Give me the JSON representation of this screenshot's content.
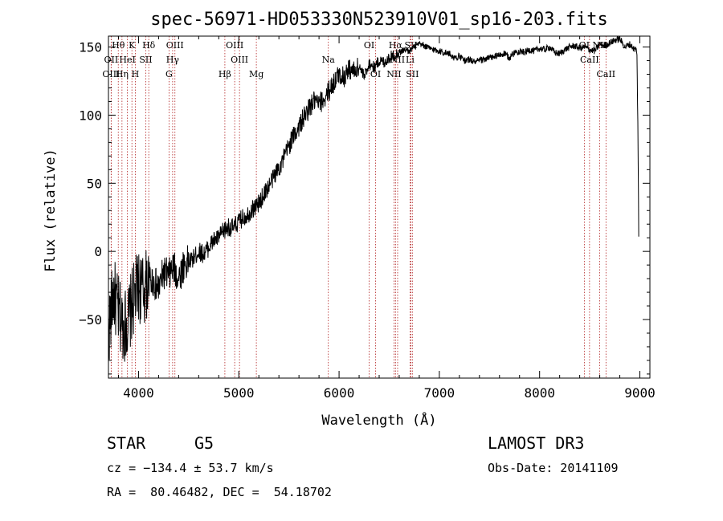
{
  "chart_data": {
    "type": "line",
    "title": "spec-56971-HD053330N523910V01_sp16-203.fits",
    "xlabel": "Wavelength (Å)",
    "ylabel": "Flux (relative)",
    "xlim": [
      3700,
      9100
    ],
    "ylim": [
      -93,
      158
    ],
    "xticks": [
      4000,
      5000,
      6000,
      7000,
      8000,
      9000
    ],
    "xtick_labels": [
      "4000",
      "5000",
      "6000",
      "7000",
      "8000",
      "9000"
    ],
    "yticks": [
      -50,
      0,
      50,
      100,
      150
    ],
    "ytick_labels": [
      "−50",
      "0",
      "50",
      "100",
      "150"
    ],
    "series": [
      {
        "name": "flux",
        "x": [
          3700,
          3750,
          3800,
          3850,
          3900,
          3950,
          4000,
          4050,
          4100,
          4150,
          4200,
          4250,
          4300,
          4350,
          4400,
          4450,
          4500,
          4550,
          4600,
          4650,
          4700,
          4750,
          4800,
          4850,
          4900,
          4950,
          5000,
          5050,
          5100,
          5150,
          5200,
          5250,
          5300,
          5350,
          5400,
          5450,
          5500,
          5550,
          5600,
          5650,
          5700,
          5750,
          5800,
          5850,
          5900,
          5950,
          6000,
          6050,
          6100,
          6150,
          6200,
          6250,
          6300,
          6350,
          6400,
          6450,
          6500,
          6550,
          6600,
          6650,
          6700,
          6750,
          6800,
          6850,
          6900,
          6950,
          7000,
          7050,
          7100,
          7150,
          7200,
          7250,
          7300,
          7350,
          7400,
          7450,
          7500,
          7550,
          7600,
          7650,
          7700,
          7750,
          7800,
          7850,
          7900,
          7950,
          8000,
          8050,
          8100,
          8150,
          8200,
          8250,
          8300,
          8350,
          8400,
          8450,
          8500,
          8550,
          8600,
          8650,
          8700,
          8750,
          8800,
          8850,
          8900,
          8950,
          8970,
          8980,
          8990
        ],
        "y": [
          -60,
          -30,
          -45,
          -55,
          -50,
          -35,
          -25,
          -30,
          -20,
          -22,
          -28,
          -15,
          -18,
          -12,
          -20,
          -10,
          -8,
          -5,
          0,
          -2,
          3,
          8,
          10,
          15,
          18,
          17,
          22,
          25,
          28,
          32,
          35,
          42,
          48,
          55,
          62,
          68,
          78,
          85,
          92,
          98,
          105,
          110,
          108,
          112,
          118,
          124,
          130,
          128,
          134,
          132,
          136,
          128,
          138,
          135,
          140,
          139,
          142,
          144,
          146,
          148,
          147,
          150,
          152,
          151,
          149,
          148,
          147,
          146,
          145,
          142,
          143,
          140,
          141,
          139,
          140,
          141,
          142,
          143,
          144,
          145,
          142,
          146,
          147,
          146,
          148,
          147,
          149,
          148,
          150,
          146,
          145,
          148,
          150,
          151,
          149,
          150,
          148,
          147,
          152,
          151,
          153,
          155,
          156,
          150,
          152,
          148,
          148,
          95,
          0
        ]
      }
    ],
    "line_markers": [
      {
        "label": "Hθ",
        "x": 3798,
        "row": 0
      },
      {
        "label": "K",
        "x": 3934,
        "row": 0
      },
      {
        "label": "Hδ",
        "x": 4102,
        "row": 0
      },
      {
        "label": "OIII",
        "x": 4363,
        "row": 0
      },
      {
        "label": "OIII",
        "x": 4959,
        "row": 0
      },
      {
        "label": "OI",
        "x": 6300,
        "row": 0
      },
      {
        "label": "Hα",
        "x": 6563,
        "row": 0
      },
      {
        "label": "SII",
        "x": 6717,
        "row": 0
      },
      {
        "label": "OI",
        "x": 8446,
        "row": 0
      },
      {
        "label": "NII",
        "x": 8600,
        "row": 0
      },
      {
        "label": "OII",
        "x": 3727,
        "row": 1
      },
      {
        "label": "HeI",
        "x": 3889,
        "row": 1
      },
      {
        "label": "SII",
        "x": 4072,
        "row": 1
      },
      {
        "label": "Hγ",
        "x": 4340,
        "row": 1
      },
      {
        "label": "OIII",
        "x": 5007,
        "row": 1
      },
      {
        "label": "Na",
        "x": 5893,
        "row": 1
      },
      {
        "label": "NII",
        "x": 6584,
        "row": 1
      },
      {
        "label": "Li",
        "x": 6708,
        "row": 1
      },
      {
        "label": "CaII",
        "x": 8498,
        "row": 1
      },
      {
        "label": "OIII",
        "x": 3727,
        "row": 2
      },
      {
        "label": "Hη",
        "x": 3835,
        "row": 2
      },
      {
        "label": "H",
        "x": 3968,
        "row": 2
      },
      {
        "label": "G",
        "x": 4304,
        "row": 2
      },
      {
        "label": "Hβ",
        "x": 4861,
        "row": 2
      },
      {
        "label": "Mg",
        "x": 5175,
        "row": 2
      },
      {
        "label": "OI",
        "x": 6364,
        "row": 2
      },
      {
        "label": "NII",
        "x": 6548,
        "row": 2
      },
      {
        "label": "SII",
        "x": 6731,
        "row": 2
      },
      {
        "label": "CaII",
        "x": 8662,
        "row": 2
      }
    ]
  },
  "info": {
    "object_class": "STAR",
    "subclass": "G5",
    "survey": "LAMOST DR3",
    "cz": "cz = −134.4 ± 53.7 km/s",
    "obs_date": "Obs-Date: 20141109",
    "coords": "RA =  80.46482, DEC =  54.18702"
  },
  "colors": {
    "line": "#000000",
    "marker": "#b22222"
  }
}
